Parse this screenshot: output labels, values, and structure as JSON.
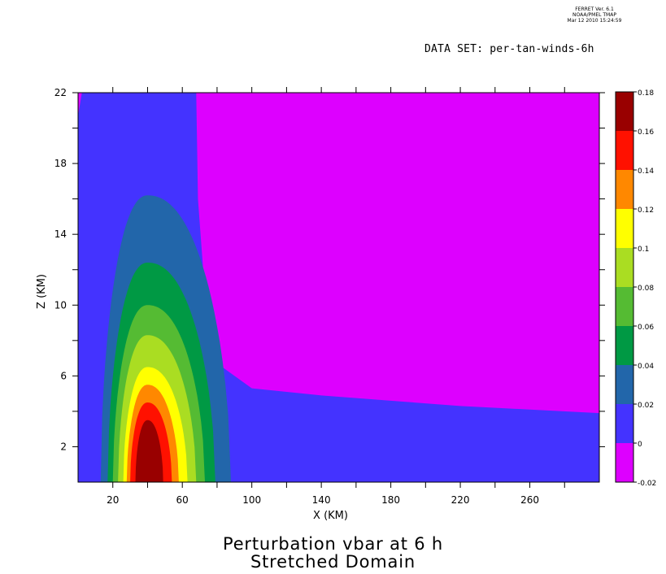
{
  "header": {
    "program_line1": "FERRET Ver. 6.1",
    "program_line2": "NOAA/PMEL TMAP",
    "program_line3": "Mar 12 2010 15:24:59",
    "dataset_label": "DATA SET: per-tan-winds-6h"
  },
  "titles": {
    "line1": "Perturbation vbar at 6 h",
    "line2": "Stretched Domain"
  },
  "colors": {
    "levels": [
      "#dd00ff",
      "#4433ff",
      "#2266aa",
      "#009944",
      "#55bb33",
      "#aadd22",
      "#ffff00",
      "#ff8800",
      "#ff1100",
      "#990000"
    ]
  },
  "chart_data": {
    "type": "heatmap",
    "subtype": "filled contour",
    "xlabel": "X (KM)",
    "ylabel": "Z (KM)",
    "xlim": [
      0,
      300
    ],
    "ylim": [
      0,
      22
    ],
    "xticks": [
      20,
      60,
      100,
      140,
      180,
      220,
      260
    ],
    "yticks": [
      2,
      6,
      10,
      14,
      18,
      22
    ],
    "colorbar": {
      "levels": [
        -0.02,
        0,
        0.02,
        0.04,
        0.06,
        0.08,
        0.1,
        0.12,
        0.14,
        0.16,
        0.18
      ],
      "tick_labels": [
        "-0.02",
        "0",
        "0.02",
        "0.04",
        "0.06",
        "0.08",
        "0.1",
        "0.12",
        "0.14",
        "0.16",
        "0.18"
      ]
    },
    "field_max_near": {
      "x": 40,
      "z": 2,
      "value": 0.17
    },
    "contours": [
      {
        "level": 0.02,
        "x_min": 13,
        "x_max": 88,
        "z_top": 16.2,
        "center_x": 40
      },
      {
        "level": 0.04,
        "x_min": 17,
        "x_max": 79,
        "z_top": 12.4,
        "center_x": 40
      },
      {
        "level": 0.06,
        "x_min": 20,
        "x_max": 73,
        "z_top": 10,
        "center_x": 40
      },
      {
        "level": 0.08,
        "x_min": 23,
        "x_max": 68,
        "z_top": 8.3,
        "center_x": 40
      },
      {
        "level": 0.1,
        "x_min": 26,
        "x_max": 63,
        "z_top": 6.5,
        "center_x": 40
      },
      {
        "level": 0.12,
        "x_min": 28,
        "x_max": 58,
        "z_top": 5.5,
        "center_x": 40
      },
      {
        "level": 0.14,
        "x_min": 30,
        "x_max": 54,
        "z_top": 4.5,
        "center_x": 40
      },
      {
        "level": 0.16,
        "x_min": 33,
        "x_max": 49,
        "z_top": 3.5,
        "center_x": 40
      }
    ],
    "zero_contour": [
      [
        68,
        22
      ],
      [
        69,
        16
      ],
      [
        72,
        12
      ],
      [
        76,
        9
      ],
      [
        83,
        6.5
      ],
      [
        100,
        5.3
      ],
      [
        140,
        4.9
      ],
      [
        180,
        4.6
      ],
      [
        220,
        4.3
      ],
      [
        260,
        4.1
      ],
      [
        300,
        3.9
      ]
    ]
  }
}
